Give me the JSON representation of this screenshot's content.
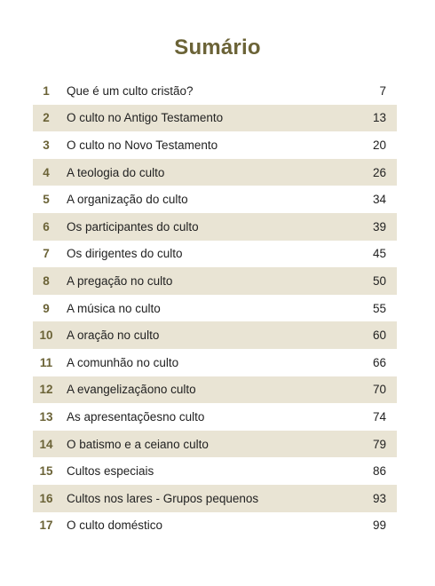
{
  "heading": "Sumário",
  "entries": [
    {
      "num": "1",
      "title": "Que é um culto cristão?",
      "page": "7"
    },
    {
      "num": "2",
      "title": "O culto no Antigo Testamento",
      "page": "13"
    },
    {
      "num": "3",
      "title": "O culto no Novo Testamento",
      "page": "20"
    },
    {
      "num": "4",
      "title": "A teologia do culto",
      "page": "26"
    },
    {
      "num": "5",
      "title": "A organização do culto",
      "page": "34"
    },
    {
      "num": "6",
      "title": "Os participantes do culto",
      "page": "39"
    },
    {
      "num": "7",
      "title": "Os dirigentes do culto",
      "page": "45"
    },
    {
      "num": "8",
      "title": "A pregação no culto",
      "page": "50"
    },
    {
      "num": "9",
      "title": "A música no culto",
      "page": "55"
    },
    {
      "num": "10",
      "title": "A oração no culto",
      "page": "60"
    },
    {
      "num": "11",
      "title": "A comunhão no culto",
      "page": "66"
    },
    {
      "num": "12",
      "title": "A evangelizaçãono culto",
      "page": "70"
    },
    {
      "num": "13",
      "title": "As apresentaçõesno culto",
      "page": "74"
    },
    {
      "num": "14",
      "title": "O batismo e a ceiano culto",
      "page": "79"
    },
    {
      "num": "15",
      "title": "Cultos especiais",
      "page": "86"
    },
    {
      "num": "16",
      "title": "Cultos nos lares - Grupos pequenos",
      "page": "93"
    },
    {
      "num": "17",
      "title": "O culto doméstico",
      "page": "99"
    }
  ],
  "colors": {
    "accent": "#6b6337",
    "row_shade": "#e9e4d4"
  }
}
